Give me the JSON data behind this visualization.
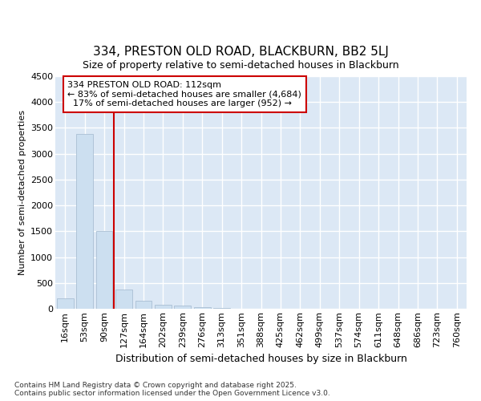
{
  "title_line1": "334, PRESTON OLD ROAD, BLACKBURN, BB2 5LJ",
  "title_line2": "Size of property relative to semi-detached houses in Blackburn",
  "xlabel": "Distribution of semi-detached houses by size in Blackburn",
  "ylabel": "Number of semi-detached properties",
  "categories": [
    "16sqm",
    "53sqm",
    "90sqm",
    "127sqm",
    "164sqm",
    "202sqm",
    "239sqm",
    "276sqm",
    "313sqm",
    "351sqm",
    "388sqm",
    "425sqm",
    "462sqm",
    "499sqm",
    "537sqm",
    "574sqm",
    "611sqm",
    "648sqm",
    "686sqm",
    "723sqm",
    "760sqm"
  ],
  "values": [
    200,
    3380,
    1500,
    380,
    155,
    85,
    55,
    30,
    8,
    4,
    0,
    0,
    0,
    0,
    0,
    0,
    0,
    0,
    0,
    0,
    0
  ],
  "bar_color": "#ccdff0",
  "bar_edge_color": "#aabfd4",
  "vline_color": "#cc0000",
  "ylim": [
    0,
    4500
  ],
  "yticks": [
    0,
    500,
    1000,
    1500,
    2000,
    2500,
    3000,
    3500,
    4000,
    4500
  ],
  "annotation_text": "334 PRESTON OLD ROAD: 112sqm\n← 83% of semi-detached houses are smaller (4,684)\n  17% of semi-detached houses are larger (952) →",
  "annotation_box_color": "#ffffff",
  "annotation_box_edge": "#cc0000",
  "footer_text": "Contains HM Land Registry data © Crown copyright and database right 2025.\nContains public sector information licensed under the Open Government Licence v3.0.",
  "fig_background_color": "#ffffff",
  "plot_background": "#dce8f5",
  "grid_color": "#ffffff",
  "title_fontsize": 11,
  "subtitle_fontsize": 9,
  "xlabel_fontsize": 9,
  "ylabel_fontsize": 8,
  "tick_fontsize": 8,
  "annot_fontsize": 8,
  "footer_fontsize": 6.5
}
